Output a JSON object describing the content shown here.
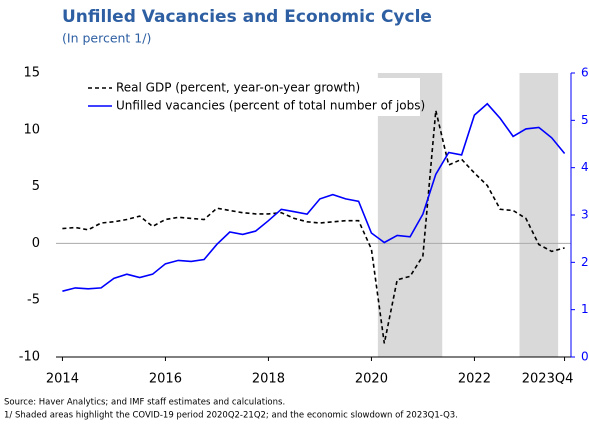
{
  "chart_data": {
    "type": "line",
    "title": "Unfilled Vacancies and Economic Cycle",
    "subtitle": "(In percent 1/)",
    "source": "Source: Haver Analytics; and IMF staff estimates and calculations.",
    "note": "1/ Shaded areas highlight the COVID-19 period 2020Q2-21Q2; and the economic slowdown of 2023Q1-Q3.",
    "x": [
      2014,
      2014.25,
      2014.5,
      2014.75,
      2015,
      2015.25,
      2015.5,
      2015.75,
      2016,
      2016.25,
      2016.5,
      2016.75,
      2017,
      2017.25,
      2017.5,
      2017.75,
      2018,
      2018.25,
      2018.5,
      2018.75,
      2019,
      2019.25,
      2019.5,
      2019.75,
      2020,
      2020.25,
      2020.5,
      2020.75,
      2021,
      2021.25,
      2021.5,
      2021.75,
      2022,
      2022.25,
      2022.5,
      2022.75,
      2023,
      2023.25,
      2023.5,
      2023.75
    ],
    "series": [
      {
        "name": "Real GDP (percent, year-on-year growth)",
        "color": "#000000",
        "dashed": true,
        "values": [
          1.3,
          1.4,
          1.2,
          1.8,
          1.9,
          2.1,
          2.4,
          1.5,
          2.1,
          2.3,
          2.2,
          2.1,
          3.1,
          2.9,
          2.7,
          2.6,
          2.6,
          2.7,
          2.2,
          1.9,
          1.8,
          1.9,
          2.0,
          2.0,
          -0.5,
          -8.8,
          -3.2,
          -2.9,
          -1.1,
          11.7,
          6.9,
          7.4,
          6.2,
          5.1,
          3.0,
          2.9,
          2.2,
          -0.1,
          -0.7,
          -0.4
        ]
      },
      {
        "name": "Unfilled vacancies (percent of total number of jobs)",
        "color": "#0000ff",
        "axis": "y2",
        "values": [
          1.39,
          1.46,
          1.44,
          1.46,
          1.66,
          1.75,
          1.68,
          1.75,
          1.97,
          2.04,
          2.02,
          2.06,
          2.38,
          2.64,
          2.59,
          2.66,
          2.88,
          3.12,
          3.07,
          3.02,
          3.34,
          3.43,
          3.34,
          3.29,
          2.62,
          2.42,
          2.57,
          2.54,
          3.02,
          3.86,
          4.32,
          4.27,
          5.11,
          5.35,
          5.04,
          4.66,
          4.82,
          4.85,
          4.63,
          4.3
        ]
      }
    ],
    "shaded": [
      [
        2020.25,
        2021.25
      ],
      [
        2023,
        2023.5
      ]
    ],
    "shade_color": "#d9d9d9",
    "xlim": [
      2013.875,
      2023.875
    ],
    "xticks": [
      2014,
      2016,
      2018,
      2020,
      2022,
      {
        "value": 2023.75,
        "label": "2023Q4"
      }
    ],
    "ylim": [
      -10,
      15
    ],
    "yticks": [
      -10,
      -5,
      0,
      5,
      10,
      15
    ],
    "y2lim": [
      0,
      6
    ],
    "y2ticks": [
      0,
      1,
      2,
      3,
      4,
      5,
      6
    ],
    "legend": "upper left"
  }
}
